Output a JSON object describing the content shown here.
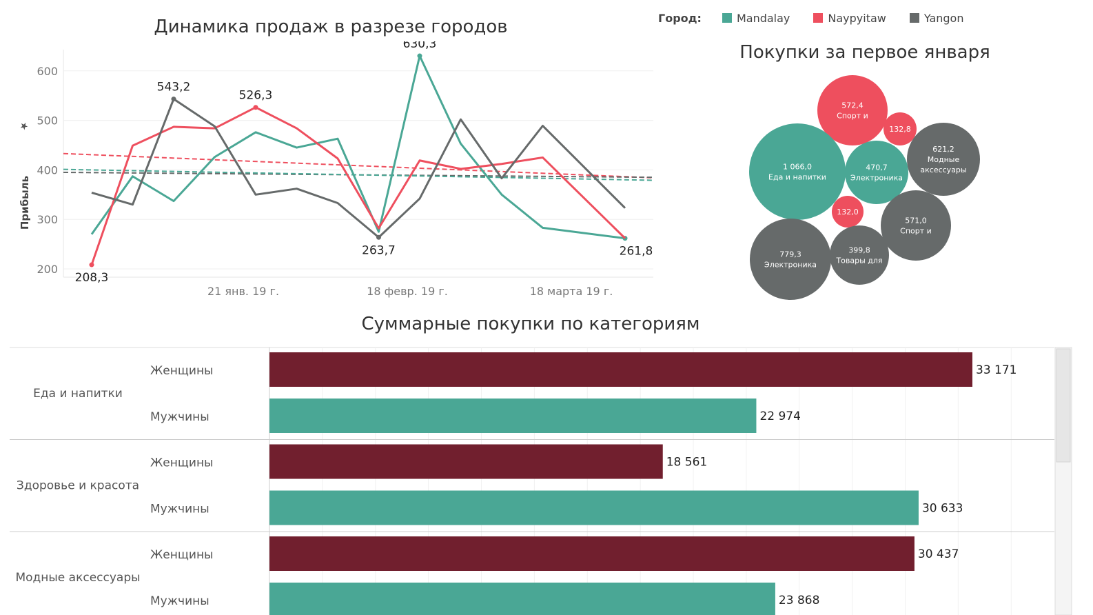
{
  "legend": {
    "title": "Город:",
    "items": [
      {
        "label": "Mandalay",
        "color": "#4aa795"
      },
      {
        "label": "Naypyitaw",
        "color": "#ee4f5e"
      },
      {
        "label": "Yangon",
        "color": "#666a6a"
      }
    ]
  },
  "chart_data": [
    {
      "type": "line",
      "title": "Динамика продаж в разрезе городов",
      "ylabel": "Прибыль",
      "xlabel": "",
      "ylim": [
        190,
        650
      ],
      "yticks": [
        200,
        300,
        400,
        500,
        600
      ],
      "x_tick_labels": [
        "21 янв. 19 г.",
        "18 февр. 19 г.",
        "18 марта 19 г."
      ],
      "x_tick_positions": [
        4,
        8,
        12
      ],
      "grid": true,
      "trend_lines": true,
      "series": [
        {
          "name": "Mandalay",
          "color": "#4aa795",
          "values": [
            270,
            387,
            337,
            426,
            476,
            445,
            463,
            275,
            630.3,
            453,
            350,
            283,
            261.8,
            261.8
          ],
          "labels": {
            "8": "630,3",
            "12": "261,8"
          }
        },
        {
          "name": "Naypyitaw",
          "color": "#ee4f5e",
          "values": [
            208.3,
            449,
            487,
            484,
            526.3,
            484,
            423,
            282,
            419,
            402,
            412,
            425,
            261.8,
            261.8
          ],
          "labels": {
            "0": "208,3",
            "4": "526,3"
          }
        },
        {
          "name": "Yangon",
          "color": "#666a6a",
          "values": [
            354,
            330,
            543.2,
            488,
            350,
            362,
            333,
            263.7,
            342,
            502,
            383,
            489,
            323,
            323
          ],
          "labels": {
            "2": "543,2",
            "7": "263,7"
          }
        }
      ],
      "trends": [
        {
          "name": "Naypyitaw",
          "color": "#ee4f5e",
          "start": 433,
          "end": 384
        },
        {
          "name": "Yangon",
          "color": "#666a6a",
          "start": 395,
          "end": 385
        },
        {
          "name": "Mandalay",
          "color": "#4aa795",
          "start": 401,
          "end": 379
        }
      ]
    },
    {
      "type": "bubble",
      "title": "Покупки за первое января",
      "bubbles": [
        {
          "value": "572,4",
          "label": "Спорт и",
          "city": "Naypyitaw",
          "color": "#ee4f5e",
          "r": 51
        },
        {
          "value": "132,8",
          "label": "",
          "city": "Naypyitaw",
          "color": "#ee4f5e",
          "r": 24
        },
        {
          "value": "1 066,0",
          "label": "Еда и напитки",
          "city": "Mandalay",
          "color": "#4aa795",
          "r": 70
        },
        {
          "value": "470,7",
          "label": "Электроника",
          "city": "Mandalay",
          "color": "#4aa795",
          "r": 46
        },
        {
          "value": "621,2",
          "label": "Модные аксессуары",
          "city": "Yangon",
          "color": "#666a6a",
          "r": 53
        },
        {
          "value": "132,0",
          "label": "",
          "city": "Naypyitaw",
          "color": "#ee4f5e",
          "r": 23
        },
        {
          "value": "571,0",
          "label": "Спорт и",
          "city": "Yangon",
          "color": "#666a6a",
          "r": 51
        },
        {
          "value": "779,3",
          "label": "Электроника",
          "city": "Yangon",
          "color": "#666a6a",
          "r": 59
        },
        {
          "value": "399,8",
          "label": "Товары для",
          "city": "Yangon",
          "color": "#666a6a",
          "r": 43
        }
      ]
    },
    {
      "type": "bar",
      "title": "Суммарные покупки по категориям",
      "xlim": [
        0,
        38000
      ],
      "grid": true,
      "colors": {
        "Женщины": "#711f2e",
        "Мужчины": "#4aa795"
      },
      "groups": [
        {
          "category": "Еда и напитки",
          "bars": [
            {
              "gender": "Женщины",
              "value": 33171,
              "label": "33 171"
            },
            {
              "gender": "Мужчины",
              "value": 22974,
              "label": "22 974"
            }
          ]
        },
        {
          "category": "Здоровье и красота",
          "bars": [
            {
              "gender": "Женщины",
              "value": 18561,
              "label": "18 561"
            },
            {
              "gender": "Мужчины",
              "value": 30633,
              "label": "30 633"
            }
          ]
        },
        {
          "category": "Модные аксессуары",
          "bars": [
            {
              "gender": "Женщины",
              "value": 30437,
              "label": "30 437"
            },
            {
              "gender": "Мужчины",
              "value": 23868,
              "label": "23 868"
            }
          ]
        }
      ]
    }
  ]
}
